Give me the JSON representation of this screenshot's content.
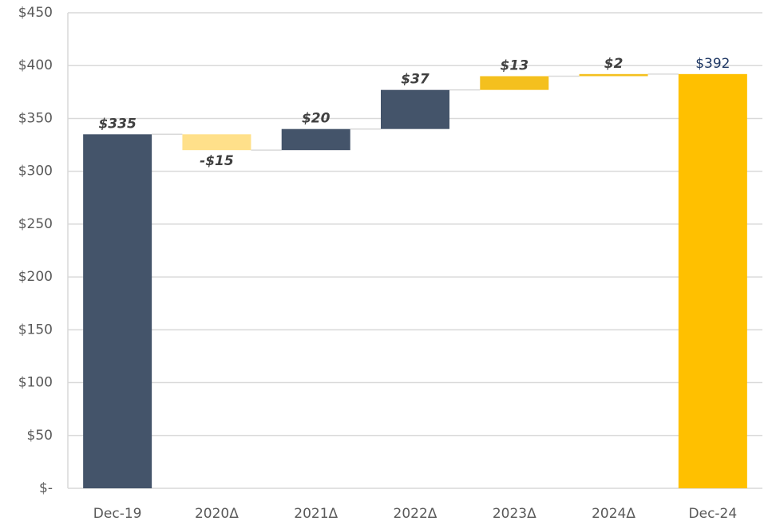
{
  "chart_data": {
    "type": "waterfall",
    "categories": [
      "Dec-19",
      "2020Δ",
      "2021Δ",
      "2022Δ",
      "2023Δ",
      "2024Δ",
      "Dec-24"
    ],
    "values": [
      335,
      -15,
      20,
      37,
      13,
      2,
      392
    ],
    "value_labels": [
      "$335",
      "-$15",
      "$20",
      "$37",
      "$13",
      "$2",
      "$392"
    ],
    "is_total": [
      true,
      false,
      false,
      false,
      false,
      false,
      true
    ],
    "colors": [
      "#44546a",
      "#ffe08a",
      "#44546a",
      "#44546a",
      "#f4c01e",
      "#f4c01e",
      "#ffc000"
    ],
    "ylim": [
      0,
      450
    ],
    "yticks": [
      {
        "value": 0,
        "label": "$-"
      },
      {
        "value": 50,
        "label": "$50"
      },
      {
        "value": 100,
        "label": "$100"
      },
      {
        "value": 150,
        "label": "$150"
      },
      {
        "value": 200,
        "label": "$200"
      },
      {
        "value": 250,
        "label": "$250"
      },
      {
        "value": 300,
        "label": "$300"
      },
      {
        "value": 350,
        "label": "$350"
      },
      {
        "value": 400,
        "label": "$400"
      },
      {
        "value": 450,
        "label": "$450"
      }
    ],
    "grid": true
  }
}
